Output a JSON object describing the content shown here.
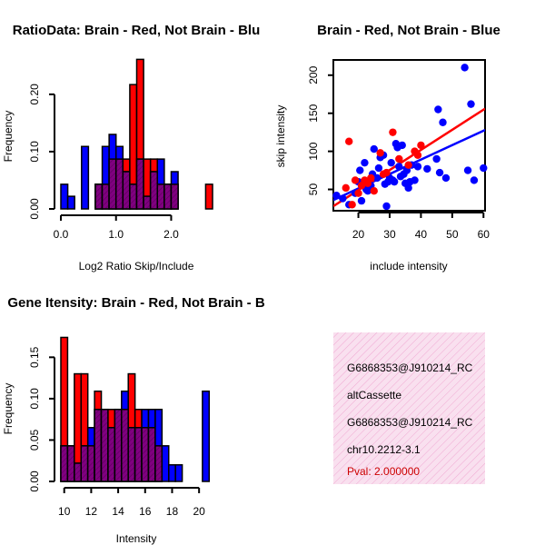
{
  "colors": {
    "brain": "#ff0000",
    "not_brain": "#0000ff",
    "overlap": "#800080",
    "info_panel_fill": "#f9e0ef",
    "info_panel_hatch": "#f0a8d2",
    "pval_text": "#cc0000"
  },
  "chart_data": [
    {
      "id": "ratio_hist",
      "type": "bar",
      "title": "RatioData: Brain - Red, Not Brain - Blu",
      "xlabel": "Log2 Ratio Skip/Include",
      "ylabel": "Frequency",
      "xlim": [
        0.0,
        2.75
      ],
      "ylim": [
        0.0,
        0.26
      ],
      "xticks": [
        "0.0",
        "1.0",
        "2.0"
      ],
      "xtick_values": [
        0,
        1,
        2
      ],
      "yticks": [
        "0.00",
        "0.10",
        "0.20"
      ],
      "ytick_values": [
        0,
        0.1,
        0.2
      ],
      "bin_width": 0.125,
      "bin_starts": [
        0.0,
        0.125,
        0.25,
        0.375,
        0.5,
        0.625,
        0.75,
        0.875,
        1.0,
        1.125,
        1.25,
        1.375,
        1.5,
        1.625,
        1.75,
        1.875,
        2.0,
        2.125,
        2.25,
        2.375,
        2.5,
        2.625
      ],
      "series": [
        {
          "name": "Brain",
          "values": [
            0,
            0,
            0,
            0,
            0,
            0.043,
            0.043,
            0.087,
            0.087,
            0.087,
            0.217,
            0.261,
            0.087,
            0.087,
            0.043,
            0.043,
            0.043,
            0,
            0,
            0,
            0,
            0.043
          ]
        },
        {
          "name": "Not Brain",
          "values": [
            0.043,
            0.022,
            0,
            0.109,
            0,
            0.043,
            0.109,
            0.13,
            0.109,
            0.065,
            0.043,
            0.087,
            0.022,
            0.065,
            0.087,
            0.043,
            0.065,
            0,
            0,
            0,
            0,
            0
          ]
        }
      ]
    },
    {
      "id": "intensity_scatter",
      "type": "scatter",
      "title": "Brain - Red, Not Brain - Blue",
      "xlabel": "include intensity",
      "ylabel": "skip intensity",
      "xlim": [
        12,
        60.5
      ],
      "ylim": [
        22,
        220
      ],
      "xticks": [
        "20",
        "30",
        "40",
        "50",
        "60"
      ],
      "xtick_values": [
        20,
        30,
        40,
        50,
        60
      ],
      "yticks": [
        "50",
        "100",
        "150",
        "200"
      ],
      "ytick_values": [
        50,
        100,
        150,
        200
      ],
      "series": [
        {
          "name": "Brain",
          "x": [
            16,
            17,
            18,
            19,
            20,
            21,
            22,
            23,
            24,
            25,
            27,
            28,
            29,
            31,
            33,
            36,
            38,
            39,
            40
          ],
          "y": [
            52,
            113,
            30,
            62,
            45,
            55,
            62,
            58,
            65,
            48,
            98,
            70,
            72,
            125,
            90,
            82,
            100,
            95,
            108
          ],
          "fit": [
            [
              12,
              28
            ],
            [
              60.5,
              156
            ]
          ]
        },
        {
          "name": "Not Brain",
          "x": [
            13,
            15,
            17,
            19,
            20,
            20.5,
            21,
            22,
            22.5,
            23,
            24,
            24.5,
            25,
            26,
            26.5,
            27,
            28,
            28.5,
            29,
            29.5,
            30,
            30.5,
            31,
            31.5,
            32,
            32.5,
            33,
            33.5,
            34,
            34.5,
            35,
            35.5,
            36,
            36.5,
            37,
            38,
            39,
            42,
            45,
            45.5,
            46,
            47,
            48,
            54,
            55,
            56,
            57,
            60
          ],
          "y": [
            42,
            38,
            30,
            45,
            60,
            75,
            35,
            85,
            50,
            48,
            55,
            70,
            103,
            65,
            78,
            92,
            95,
            57,
            28,
            60,
            65,
            85,
            62,
            60,
            110,
            105,
            80,
            67,
            108,
            70,
            58,
            75,
            52,
            60,
            82,
            62,
            80,
            77,
            90,
            155,
            72,
            138,
            65,
            210,
            75,
            162,
            62,
            78
          ],
          "fit": [
            [
              12,
              36
            ],
            [
              60.5,
              128
            ]
          ]
        }
      ]
    },
    {
      "id": "intensity_hist",
      "type": "bar",
      "title": "Gene Itensity: Brain - Red, Not Brain - B",
      "xlabel": "Intensity",
      "ylabel": "Frequency",
      "xlim": [
        9.75,
        21.0
      ],
      "ylim": [
        0.0,
        0.18
      ],
      "xticks": [
        "10",
        "12",
        "14",
        "16",
        "18",
        "20"
      ],
      "xtick_values": [
        10,
        12,
        14,
        16,
        18,
        20
      ],
      "yticks": [
        "0.00",
        "0.05",
        "0.10",
        "0.15"
      ],
      "ytick_values": [
        0,
        0.05,
        0.1,
        0.15
      ],
      "bin_width": 0.5,
      "bin_starts": [
        9.75,
        10.25,
        10.75,
        11.25,
        11.75,
        12.25,
        12.75,
        13.25,
        13.75,
        14.25,
        14.75,
        15.25,
        15.75,
        16.25,
        16.75,
        17.25,
        17.75,
        18.25,
        18.75,
        19.25,
        19.75,
        20.25
      ],
      "series": [
        {
          "name": "Brain",
          "values": [
            0.174,
            0.043,
            0.13,
            0.13,
            0.043,
            0.109,
            0.087,
            0.087,
            0.087,
            0.087,
            0.13,
            0.087,
            0.065,
            0.065,
            0.043,
            0,
            0,
            0,
            0,
            0,
            0,
            0
          ]
        },
        {
          "name": "Not Brain",
          "values": [
            0.043,
            0.043,
            0.022,
            0.043,
            0.065,
            0.087,
            0.087,
            0.065,
            0.087,
            0.109,
            0.065,
            0.065,
            0.087,
            0.087,
            0.087,
            0.043,
            0.02,
            0.02,
            0,
            0,
            0,
            0.109
          ]
        }
      ]
    }
  ],
  "info_panel": {
    "line1": "G6868353@J910214_RC",
    "line2": "altCassette",
    "line3": "G6868353@J910214_RC",
    "line4": "chr10.2212-3.1",
    "pval": "Pval: 2.000000"
  }
}
